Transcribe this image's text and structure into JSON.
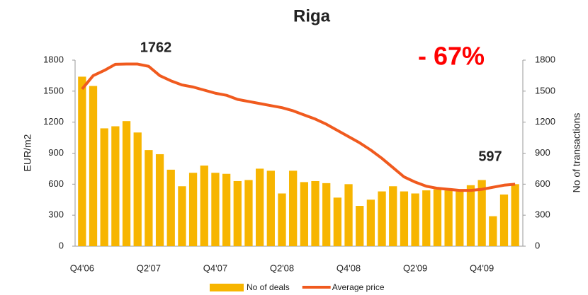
{
  "chart_data": {
    "type": "bar-line",
    "title": "Riga",
    "ylabel": "EUR/m2",
    "y2label": "No of transactions",
    "categories": [
      "Q4'06",
      null,
      null,
      null,
      null,
      null,
      "Q2'07",
      null,
      null,
      null,
      null,
      null,
      "Q4'07",
      null,
      null,
      null,
      null,
      null,
      "Q2'08",
      null,
      null,
      null,
      null,
      null,
      "Q4'08",
      null,
      null,
      null,
      null,
      null,
      "Q2'09",
      null,
      null,
      null,
      null,
      null,
      "Q4'09",
      null,
      null,
      null
    ],
    "series": [
      {
        "name": "No of deals",
        "type": "bar",
        "axis": "y2",
        "color": "#f7b500",
        "values": [
          1640,
          1550,
          1140,
          1160,
          1210,
          1100,
          930,
          890,
          740,
          580,
          710,
          780,
          710,
          700,
          630,
          640,
          750,
          730,
          510,
          730,
          620,
          630,
          610,
          470,
          600,
          390,
          450,
          530,
          580,
          530,
          510,
          540,
          550,
          540,
          530,
          590,
          640,
          290,
          500,
          600
        ]
      },
      {
        "name": "Average price",
        "type": "line",
        "axis": "y",
        "color": "#f05a1e",
        "values": [
          1520,
          1650,
          1700,
          1760,
          1762,
          1762,
          1740,
          1650,
          1600,
          1560,
          1540,
          1510,
          1480,
          1460,
          1420,
          1400,
          1380,
          1360,
          1340,
          1310,
          1270,
          1230,
          1180,
          1120,
          1060,
          1000,
          930,
          850,
          760,
          670,
          620,
          580,
          560,
          550,
          540,
          540,
          550,
          570,
          590,
          600
        ]
      }
    ],
    "ylim": [
      0,
      1800
    ],
    "yticks": [
      0,
      300,
      600,
      900,
      1200,
      1500,
      1800
    ],
    "y2lim": [
      0,
      1800
    ],
    "y2ticks": [
      0,
      300,
      600,
      900,
      1200,
      1500,
      1800
    ],
    "annotations": [
      {
        "text": "1762"
      },
      {
        "text": "597"
      },
      {
        "text": "- 67%"
      }
    ],
    "legend": "bottom"
  }
}
